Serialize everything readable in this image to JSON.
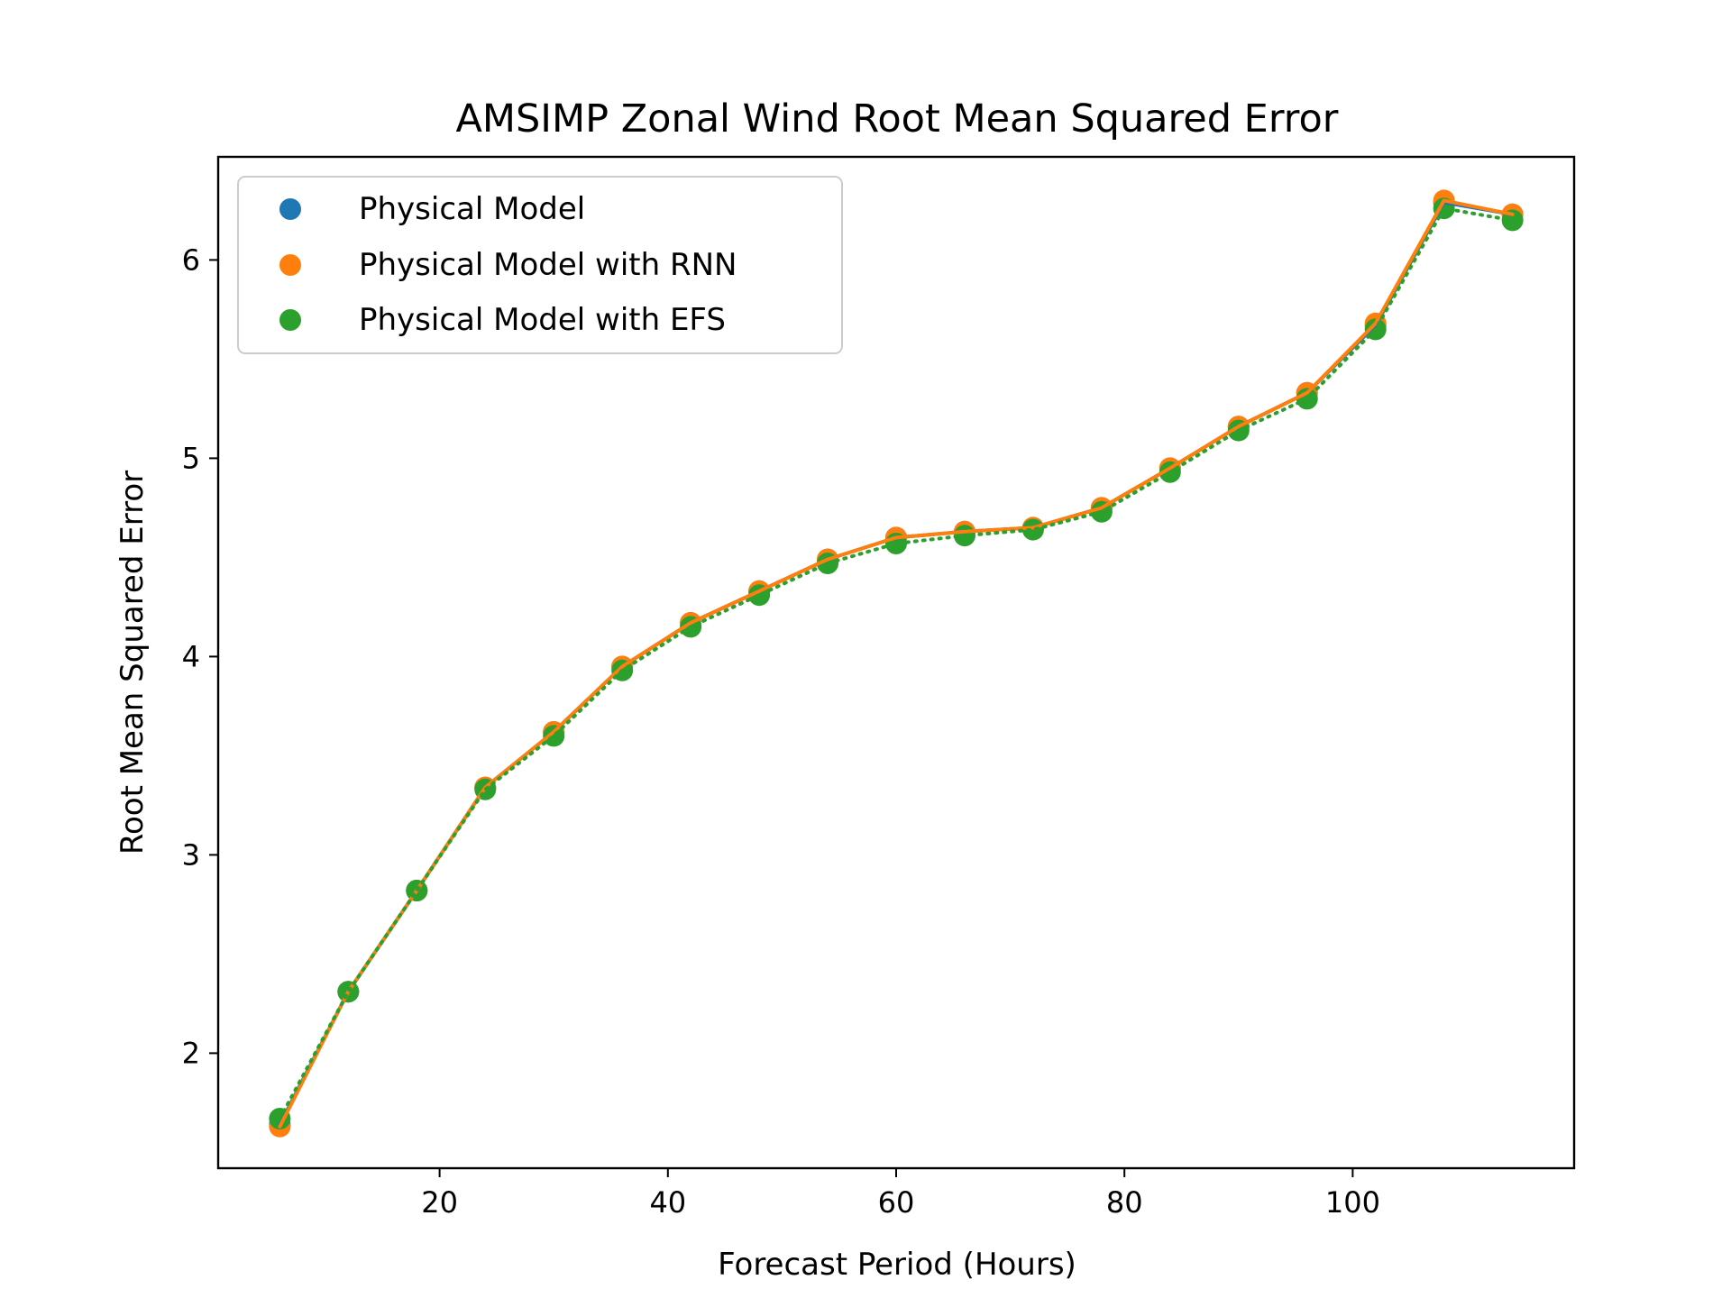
{
  "chart_data": {
    "type": "line",
    "title": "AMSIMP Zonal Wind Root Mean Squared Error",
    "xlabel": "Forecast Period (Hours)",
    "ylabel": "Root Mean Squared Error",
    "xlim": [
      0.6,
      119.4
    ],
    "ylim": [
      1.42,
      6.52
    ],
    "xticks": [
      20,
      40,
      60,
      80,
      100
    ],
    "yticks": [
      2,
      3,
      4,
      5,
      6
    ],
    "grid": false,
    "legend_position": "top-left",
    "x": [
      6,
      12,
      18,
      24,
      30,
      36,
      42,
      48,
      54,
      60,
      66,
      72,
      78,
      84,
      90,
      96,
      102,
      108,
      114
    ],
    "series": [
      {
        "name": "Physical Model",
        "color": "#1f77b4",
        "linestyle": "solid",
        "values": [
          1.64,
          2.31,
          2.82,
          3.34,
          3.62,
          3.95,
          4.17,
          4.33,
          4.49,
          4.6,
          4.63,
          4.65,
          4.75,
          4.95,
          5.16,
          5.33,
          5.67,
          6.29,
          6.23
        ]
      },
      {
        "name": "Physical Model with RNN",
        "color": "#ff7f0e",
        "linestyle": "solid",
        "values": [
          1.63,
          2.31,
          2.82,
          3.34,
          3.62,
          3.95,
          4.17,
          4.33,
          4.49,
          4.6,
          4.63,
          4.65,
          4.75,
          4.95,
          5.16,
          5.33,
          5.68,
          6.3,
          6.23
        ]
      },
      {
        "name": "Physical Model with EFS",
        "color": "#2ca02c",
        "linestyle": "dotted",
        "values": [
          1.67,
          2.31,
          2.82,
          3.33,
          3.6,
          3.93,
          4.15,
          4.31,
          4.47,
          4.57,
          4.61,
          4.64,
          4.73,
          4.93,
          5.14,
          5.3,
          5.65,
          6.26,
          6.2
        ]
      }
    ]
  }
}
